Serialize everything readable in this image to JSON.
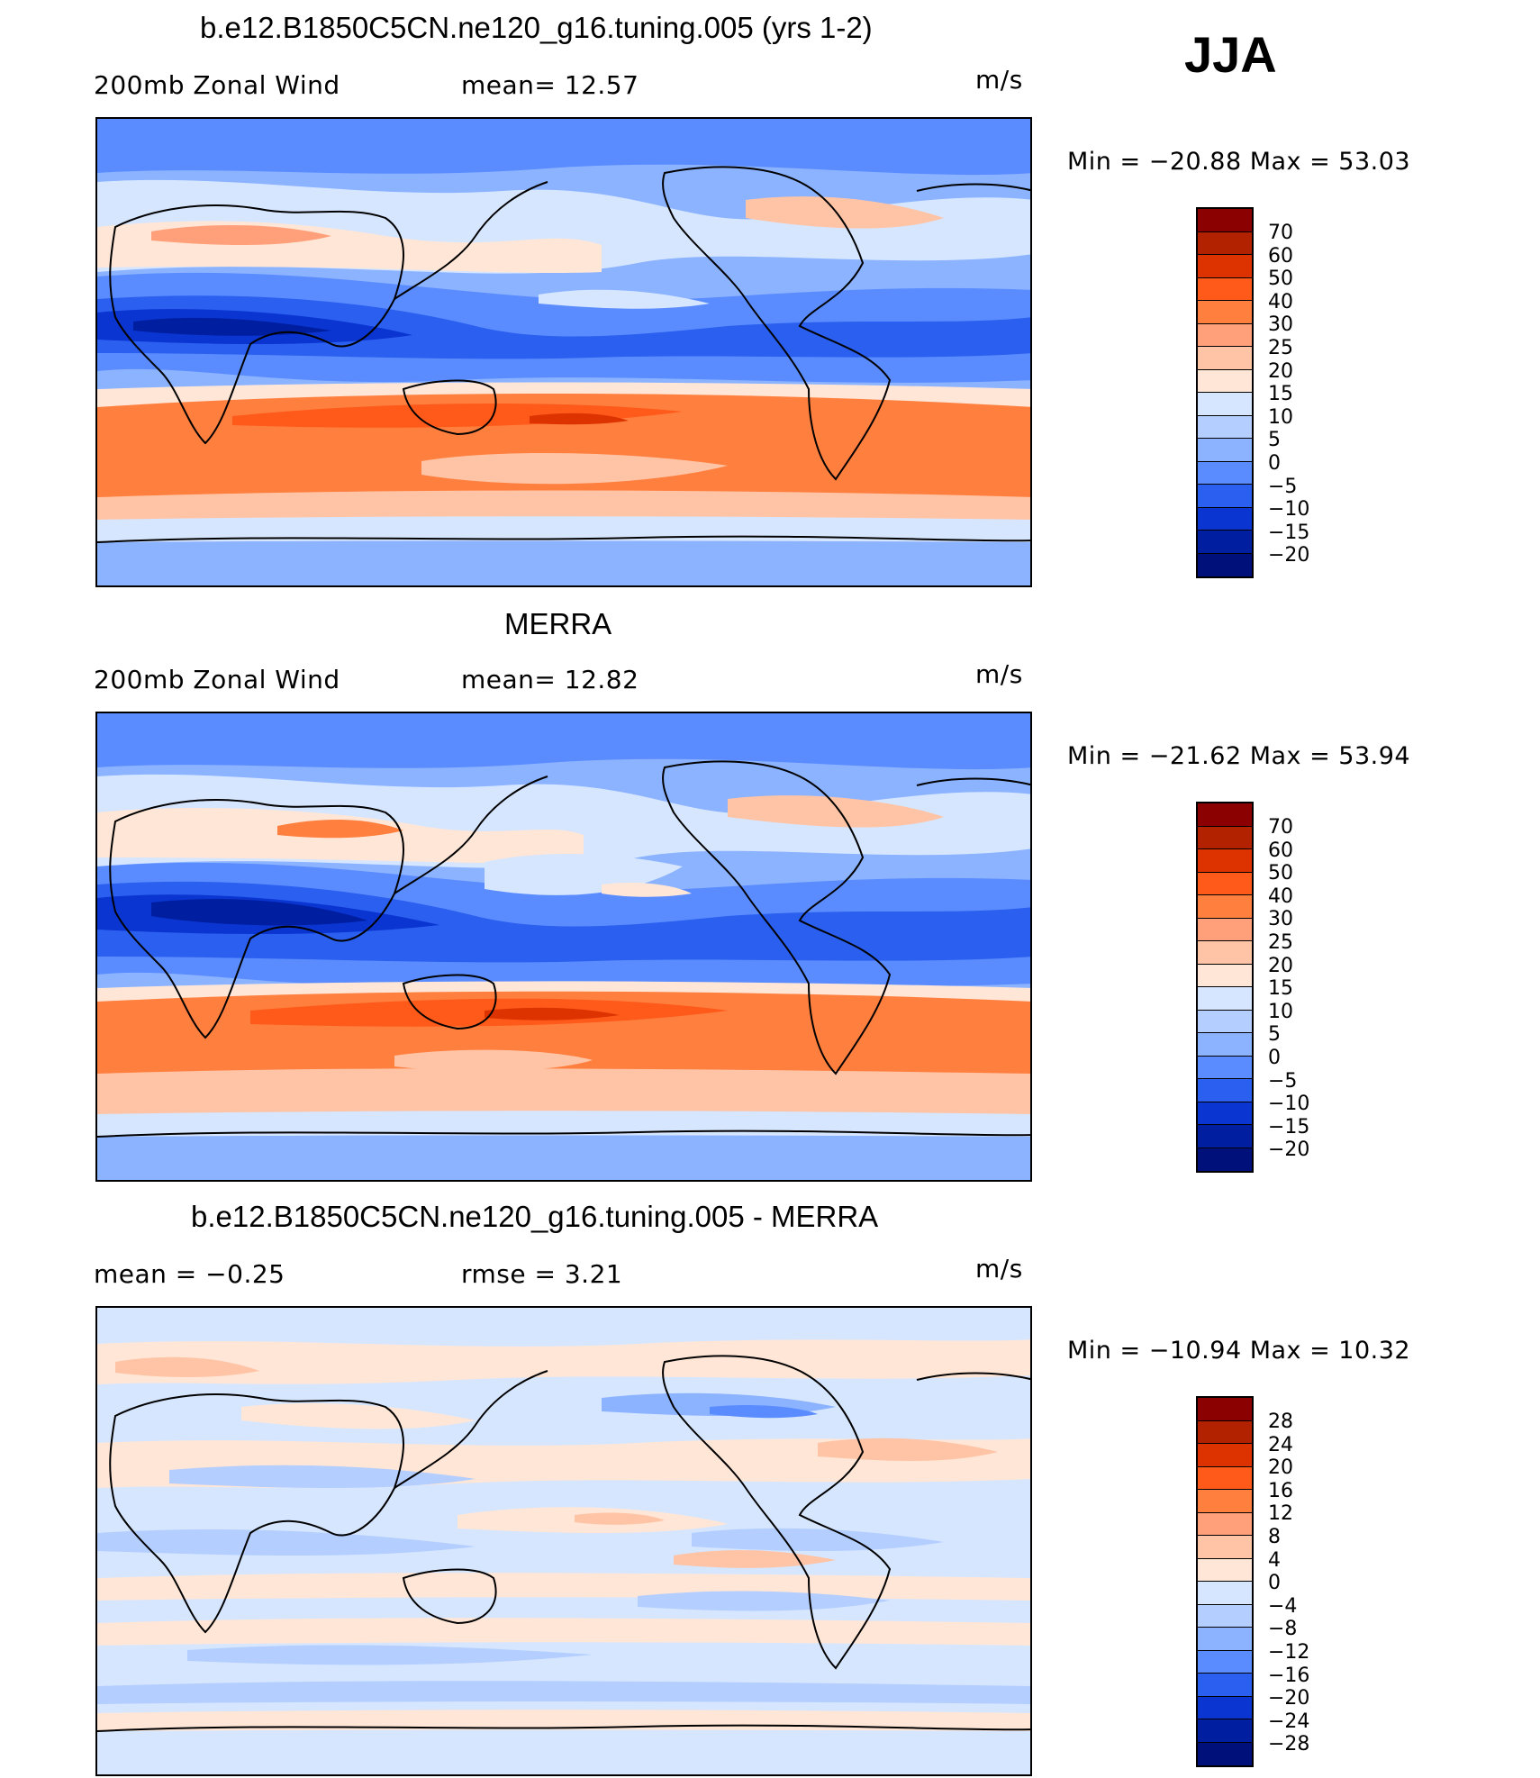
{
  "season": "JJA",
  "panels": [
    {
      "title": "b.e12.B1850C5CN.ne120_g16.tuning.005 (yrs 1-2)",
      "left_label": "200mb  Zonal  Wind",
      "center_label": "mean=   12.57",
      "units": "m/s",
      "minmax": "Min  =  −20.88  Max  =    53.03",
      "colorbar_labels": [
        "70",
        "60",
        "50",
        "40",
        "30",
        "25",
        "20",
        "15",
        "10",
        "5",
        "0",
        "−5",
        "−10",
        "−15",
        "−20"
      ]
    },
    {
      "title": "MERRA",
      "left_label": "200mb  Zonal  Wind",
      "center_label": "mean=   12.82",
      "units": "m/s",
      "minmax": "Min  =  −21.62  Max  =    53.94",
      "colorbar_labels": [
        "70",
        "60",
        "50",
        "40",
        "30",
        "25",
        "20",
        "15",
        "10",
        "5",
        "0",
        "−5",
        "−10",
        "−15",
        "−20"
      ]
    },
    {
      "title": "b.e12.B1850C5CN.ne120_g16.tuning.005 - MERRA",
      "left_label": "mean  =    −0.25",
      "center_label": "rmse  =     3.21",
      "units": "m/s",
      "minmax": "Min  =  −10.94  Max  =    10.32",
      "colorbar_labels": [
        "28",
        "24",
        "20",
        "16",
        "12",
        "8",
        "4",
        "0",
        "−4",
        "−8",
        "−12",
        "−16",
        "−20",
        "−24",
        "−28"
      ]
    }
  ],
  "colors": {
    "abs_scale": [
      "#8b0000",
      "#b22200",
      "#dd3300",
      "#ff5a1a",
      "#ff7f3f",
      "#ffa07a",
      "#ffc4a6",
      "#ffe6d6",
      "#d6e6ff",
      "#b3ceff",
      "#8cb3ff",
      "#5a8cff",
      "#2a5ff0",
      "#0a35d0",
      "#001ea0",
      "#00107a"
    ],
    "diff_scale": [
      "#8b0000",
      "#b22200",
      "#dd3300",
      "#ff5a1a",
      "#ff7f3f",
      "#ffa07a",
      "#ffc4a6",
      "#ffe6d6",
      "#d6e6ff",
      "#b3ceff",
      "#8cb3ff",
      "#5a8cff",
      "#2a5ff0",
      "#0a35d0",
      "#001ea0",
      "#00107a"
    ]
  }
}
